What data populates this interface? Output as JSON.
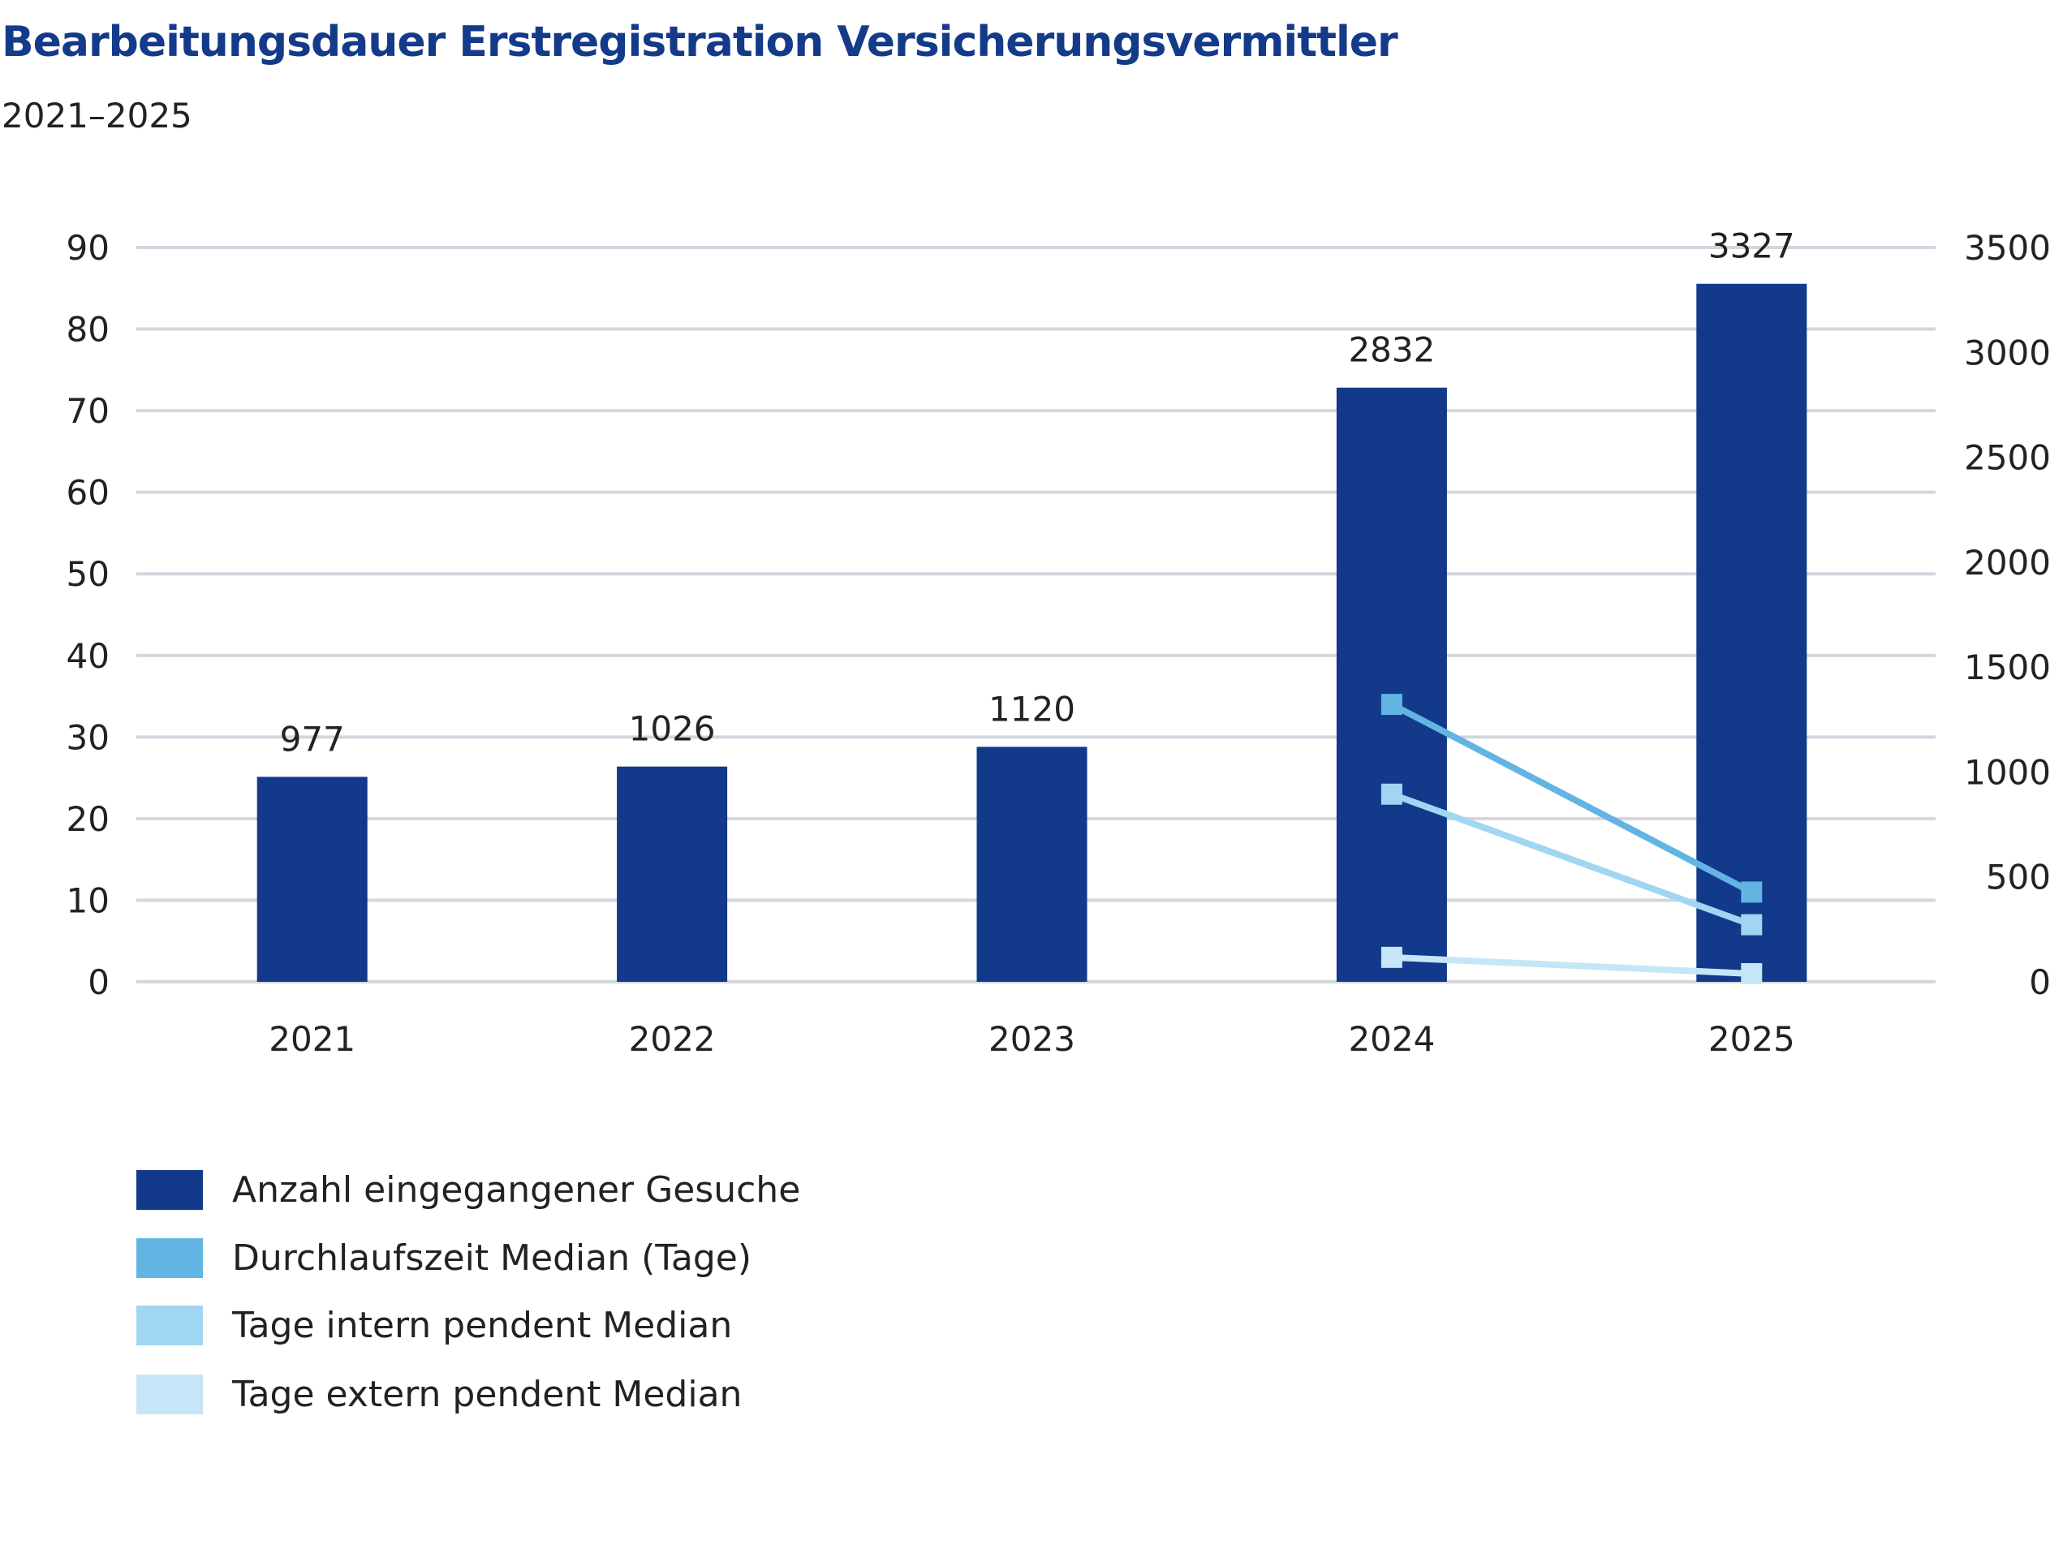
{
  "chart_data": {
    "type": "bar",
    "title": "Bearbeitungsdauer Erstregistration Versicherungsvermittler",
    "subtitle": "2021–2025",
    "categories": [
      "2021",
      "2022",
      "2023",
      "2024",
      "2025"
    ],
    "left_axis": {
      "ylim": [
        0,
        90
      ],
      "ticks": [
        "0",
        "10",
        "20",
        "30",
        "40",
        "50",
        "60",
        "70",
        "80",
        "90"
      ]
    },
    "right_axis": {
      "ylim": [
        0,
        3500
      ],
      "ticks": [
        "0",
        "500",
        "1000",
        "1500",
        "2000",
        "2500",
        "3000",
        "3500"
      ]
    },
    "grid": true,
    "legend_position": "bottom-left",
    "series": [
      {
        "name": "Anzahl eingegangener Gesuche",
        "type": "bar",
        "axis": "right",
        "color": "#12398a",
        "values": [
          977,
          1026,
          1120,
          2832,
          3327
        ],
        "labels": [
          "977",
          "1026",
          "1120",
          "2832",
          "3327"
        ]
      },
      {
        "name": "Durchlaufszeit Median (Tage)",
        "type": "line",
        "axis": "left",
        "color": "#62b4e2",
        "values": [
          null,
          null,
          null,
          34,
          11
        ]
      },
      {
        "name": "Tage intern pendent Median",
        "type": "line",
        "axis": "left",
        "color": "#a0d6f1",
        "values": [
          null,
          null,
          null,
          23,
          7
        ]
      },
      {
        "name": "Tage extern pendent Median",
        "type": "line",
        "axis": "left",
        "color": "#c5e6f7",
        "values": [
          null,
          null,
          null,
          3,
          1
        ]
      }
    ]
  }
}
